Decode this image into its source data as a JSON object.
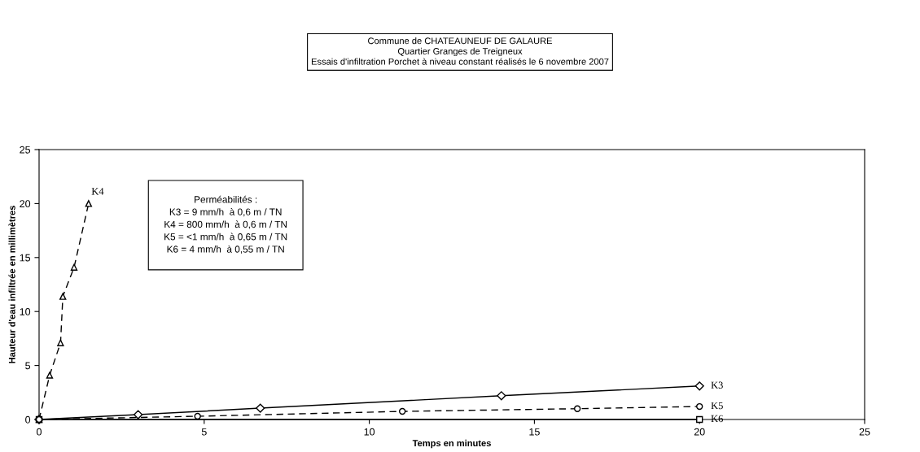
{
  "chart_data": {
    "type": "line",
    "title": "Commune de CHATEAUNEUF DE GALAURE\nQuartier Granges de Treigneux\nEssais d'infiltration Porchet à niveau constant réalisés le 6 novembre 2007",
    "xlabel": "Temps en minutes",
    "ylabel": "Hauteur d'eau infiltrée en millimètres",
    "annotations": [
      "Perméabilités :\nK3 = 9 mm/h  à 0,6 m / TN\nK4 = 800 mm/h  à 0,6 m / TN\nK5 = <1 mm/h  à 0,65 m / TN\nK6 = 4 mm/h  à 0,55 m / TN"
    ],
    "series": [
      {
        "name": "K6",
        "color": "#000000",
        "marker": "square",
        "line_style": "solid",
        "x": [
          0,
          20
        ],
        "values": [
          0,
          0
        ]
      },
      {
        "name": "K4",
        "color": "#000000",
        "marker": "triangle",
        "line_style": "dashed",
        "x": [
          0,
          0.32,
          0.65,
          0.72,
          1.06,
          1.5
        ],
        "values": [
          0,
          4.1,
          7.1,
          11.4,
          14.1,
          20
        ]
      },
      {
        "name": "K3",
        "color": "#000000",
        "marker": "diamond",
        "line_style": "solid",
        "x": [
          0,
          3,
          6.7,
          14,
          20
        ],
        "values": [
          0,
          0.45,
          1.05,
          2.2,
          3.1
        ]
      },
      {
        "name": "K5",
        "color": "#000000",
        "marker": "circle",
        "line_style": "dashed",
        "x": [
          0,
          4.8,
          11,
          16.3,
          20
        ],
        "values": [
          0,
          0.3,
          0.75,
          1.0,
          1.2
        ]
      }
    ],
    "xlim": [
      0,
      25
    ],
    "xticks": [
      0,
      5,
      10,
      15,
      20,
      25
    ],
    "ylim": [
      0,
      25
    ],
    "yticks": [
      0,
      5,
      10,
      15,
      20,
      25
    ],
    "grid": false
  }
}
